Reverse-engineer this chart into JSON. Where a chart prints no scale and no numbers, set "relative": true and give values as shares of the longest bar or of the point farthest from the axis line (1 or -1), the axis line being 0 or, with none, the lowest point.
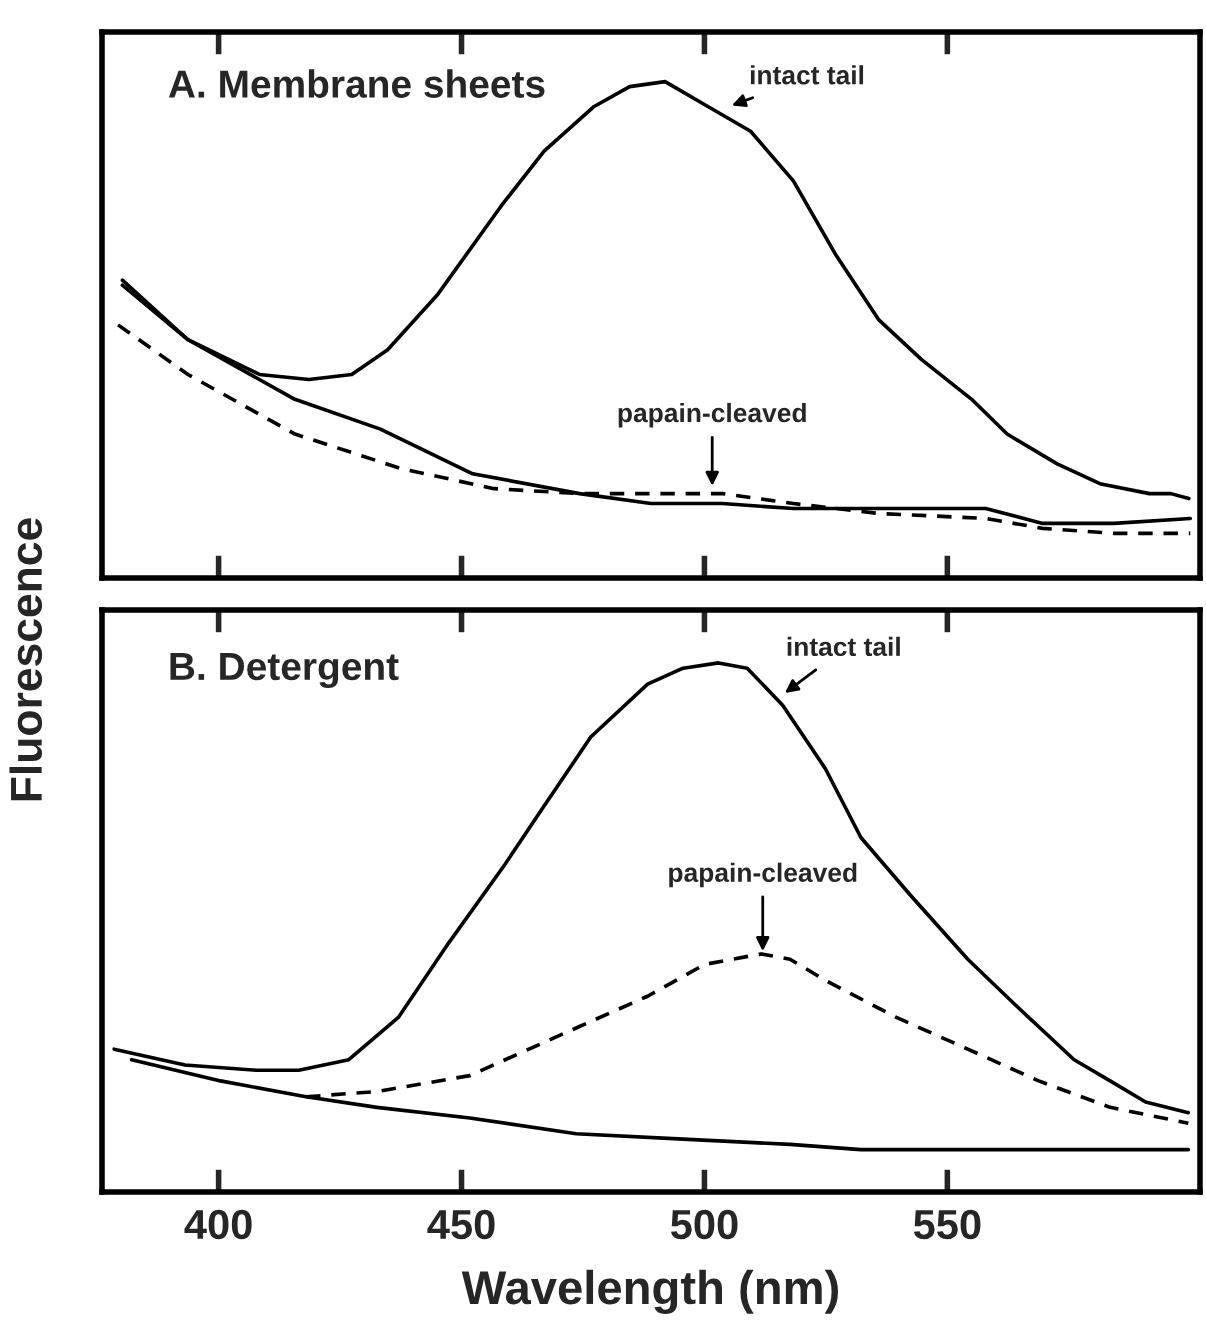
{
  "chart_data": [
    {
      "type": "line",
      "title": "A. Membrane sheets",
      "ylabel": "Fluorescence",
      "relative": true,
      "xlim": [
        376,
        602
      ],
      "xticks": [
        400,
        450,
        500,
        550
      ],
      "tick_labels": false,
      "grid": false,
      "legend": false,
      "marker": "none",
      "series": [
        {
          "color": "#000000",
          "line_style": "solid",
          "x": [
            380.2,
            393.7,
            408.4,
            418.6,
            427.4,
            434.8,
            445.0,
            458.2,
            467.0,
            477.3,
            484.6,
            491.9,
            500.7,
            509.5,
            518.3,
            527.1,
            535.9,
            544.7,
            555.0,
            562.3,
            572.6,
            581.4,
            591.6,
            596.0,
            599.7
          ],
          "values": [
            0.6,
            0.48,
            0.41,
            0.4,
            0.41,
            0.46,
            0.57,
            0.75,
            0.86,
            0.95,
            0.99,
            1.0,
            0.95,
            0.9,
            0.8,
            0.65,
            0.52,
            0.44,
            0.36,
            0.29,
            0.23,
            0.19,
            0.17,
            0.17,
            0.16
          ]
        },
        {
          "color": "#000000",
          "line_style": "solid",
          "x": [
            380.2,
            393.7,
            415.7,
            433.3,
            452.3,
            474.3,
            489.0,
            503.7,
            518.3,
            535.9,
            557.9,
            569.6,
            584.3,
            600.0
          ],
          "values": [
            0.59,
            0.48,
            0.36,
            0.3,
            0.21,
            0.17,
            0.15,
            0.15,
            0.14,
            0.14,
            0.14,
            0.11,
            0.11,
            0.12
          ]
        },
        {
          "color": "#000000",
          "line_style": "dashed",
          "x": [
            379.3,
            393.7,
            415.7,
            437.7,
            456.7,
            474.3,
            489.0,
            503.7,
            518.3,
            535.9,
            557.9,
            569.6,
            584.3,
            600.0
          ],
          "values": [
            0.51,
            0.41,
            0.29,
            0.22,
            0.18,
            0.17,
            0.17,
            0.17,
            0.15,
            0.13,
            0.12,
            0.1,
            0.09,
            0.09
          ]
        }
      ],
      "annotations": [
        {
          "text": "intact tail",
          "x": 505.1,
          "y": 0.95
        },
        {
          "text": "papain-cleaved",
          "x": 501.6,
          "y": 0.18
        }
      ]
    },
    {
      "type": "line",
      "title": "B. Detergent",
      "xlabel": "Wavelength (nm)",
      "relative": true,
      "xlim": [
        376,
        602
      ],
      "xticks": [
        400,
        450,
        500,
        550
      ],
      "tick_labels": "x",
      "grid": false,
      "legend": false,
      "marker": "none",
      "series": [
        {
          "color": "#000000",
          "line_style": "solid",
          "x": [
            378.5,
            393.1,
            407.8,
            416.5,
            426.8,
            437.0,
            447.3,
            459.0,
            466.3,
            476.6,
            488.3,
            495.6,
            502.9,
            508.8,
            516.1,
            524.9,
            532.2,
            542.5,
            554.2,
            564.4,
            576.1,
            583.5,
            590.8,
            599.6
          ],
          "values": [
            0.27,
            0.24,
            0.23,
            0.23,
            0.25,
            0.33,
            0.47,
            0.62,
            0.72,
            0.86,
            0.96,
            0.99,
            1.0,
            0.99,
            0.92,
            0.8,
            0.67,
            0.56,
            0.44,
            0.35,
            0.25,
            0.21,
            0.17,
            0.15
          ]
        },
        {
          "color": "#000000",
          "line_style": "dashed",
          "x": [
            418.0,
            432.6,
            451.7,
            473.6,
            488.3,
            500.0,
            511.7,
            517.6,
            524.9,
            539.5,
            554.2,
            568.8,
            583.5,
            599.6
          ],
          "values": [
            0.18,
            0.19,
            0.22,
            0.31,
            0.37,
            0.43,
            0.45,
            0.44,
            0.4,
            0.33,
            0.27,
            0.21,
            0.16,
            0.13
          ]
        },
        {
          "color": "#000000",
          "line_style": "solid",
          "x": [
            382.1,
            400.4,
            418.0,
            432.6,
            451.7,
            473.6,
            495.6,
            517.6,
            532.2,
            551.2,
            576.1,
            599.6
          ],
          "values": [
            0.25,
            0.21,
            0.18,
            0.16,
            0.14,
            0.11,
            0.1,
            0.09,
            0.08,
            0.08,
            0.08,
            0.08
          ]
        }
      ],
      "annotations": [
        {
          "text": "intact tail",
          "x": 516.1,
          "y": 0.94
        },
        {
          "text": "papain-cleaved",
          "x": 512.0,
          "y": 0.45
        }
      ]
    }
  ]
}
